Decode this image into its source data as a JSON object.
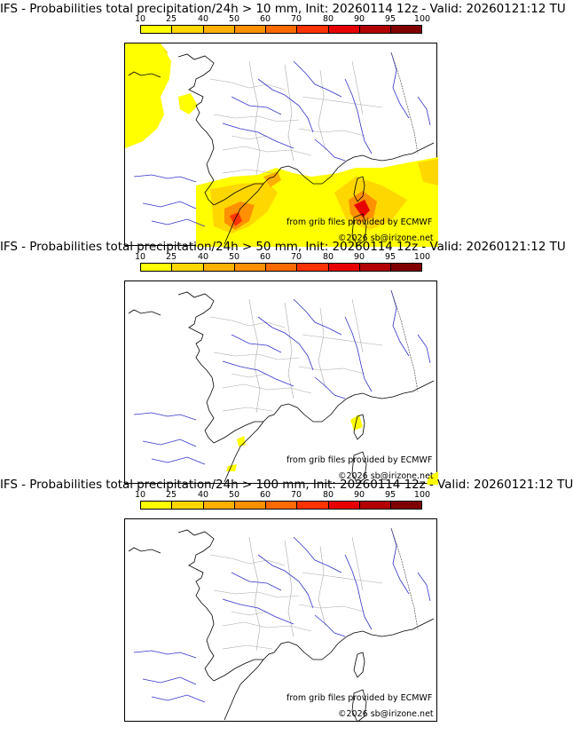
{
  "panels": [
    {
      "title": "IFS - Probabilities total precipitation/24h > 10 mm, Init: 20260114 12z - Valid: 20260121:12 TU",
      "threshold_mm": 10
    },
    {
      "title": "IFS - Probabilities total precipitation/24h > 50 mm, Init: 20260114 12z - Valid: 20260121:12 TU",
      "threshold_mm": 50
    },
    {
      "title": "IFS - Probabilities total precipitation/24h > 100 mm, Init: 20260114 12z - Valid: 20260121:12 TU",
      "threshold_mm": 100
    }
  ],
  "colorbar": {
    "labels": [
      "10",
      "25",
      "40",
      "50",
      "60",
      "70",
      "80",
      "90",
      "95",
      "100"
    ],
    "colors": [
      "#ffff00",
      "#ffd700",
      "#ffb000",
      "#ff9000",
      "#ff6a00",
      "#ff3300",
      "#e60000",
      "#b30000",
      "#800000"
    ]
  },
  "credits": {
    "source": "from grib files provided by ECMWF",
    "copyright": "©2026 sb@irizone.net"
  },
  "map_colors": {
    "land_border": "#000000",
    "rivers": "#3333cc",
    "regions": "#aaaaaa"
  }
}
